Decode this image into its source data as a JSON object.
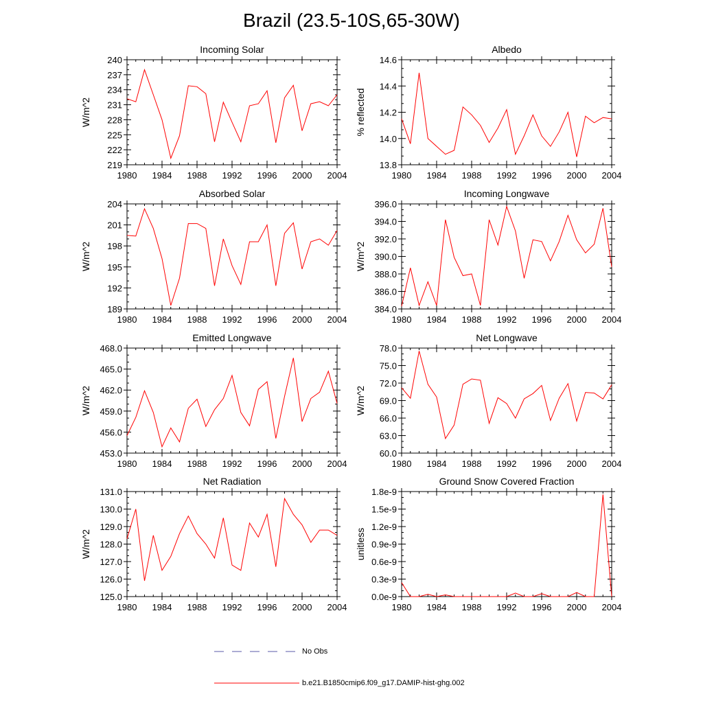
{
  "title": "Brazil (23.5-10S,65-30W)",
  "colors": {
    "model_line": "#ff0000",
    "obs_line": "#5a5aa8",
    "axis": "#000000"
  },
  "legend": {
    "obs_label": "No Obs",
    "model_label": "b.e21.B1850cmip6.f09_g17.DAMIP-hist-ghg.002"
  },
  "chart_data": [
    {
      "type": "line",
      "title": "Incoming Solar",
      "ylabel": "W/m^2",
      "x": [
        1980,
        1981,
        1982,
        1983,
        1984,
        1985,
        1986,
        1987,
        1988,
        1989,
        1990,
        1991,
        1992,
        1993,
        1994,
        1995,
        1996,
        1997,
        1998,
        1999,
        2000,
        2001,
        2002,
        2003,
        2004
      ],
      "values": [
        232.2,
        231.6,
        238.0,
        233.0,
        228.0,
        220.3,
        224.8,
        234.8,
        234.6,
        233.2,
        223.6,
        231.5,
        227.5,
        223.6,
        230.8,
        231.2,
        233.8,
        223.4,
        232.4,
        234.9,
        225.8,
        231.2,
        231.6,
        230.8,
        233.0
      ],
      "xlim": [
        1980,
        2004
      ],
      "ylim": [
        219,
        240
      ],
      "xticks": [
        "1980",
        "1984",
        "1988",
        "1992",
        "1996",
        "2000",
        "2004"
      ],
      "yticks": [
        "219",
        "222",
        "225",
        "228",
        "231",
        "234",
        "237",
        "240"
      ]
    },
    {
      "type": "line",
      "title": "Albedo",
      "ylabel": "% reflected",
      "x": [
        1980,
        1981,
        1982,
        1983,
        1984,
        1985,
        1986,
        1987,
        1988,
        1989,
        1990,
        1991,
        1992,
        1993,
        1994,
        1995,
        1996,
        1997,
        1998,
        1999,
        2000,
        2001,
        2002,
        2003,
        2004
      ],
      "values": [
        14.15,
        13.96,
        14.5,
        14.0,
        13.94,
        13.88,
        13.91,
        14.24,
        14.18,
        14.1,
        13.97,
        14.08,
        14.22,
        13.88,
        14.02,
        14.18,
        14.02,
        13.94,
        14.05,
        14.2,
        13.86,
        14.17,
        14.12,
        14.16,
        14.15
      ],
      "xlim": [
        1980,
        2004
      ],
      "ylim": [
        13.8,
        14.6
      ],
      "xticks": [
        "1980",
        "1984",
        "1988",
        "1992",
        "1996",
        "2000",
        "2004"
      ],
      "yticks": [
        "13.8",
        "14.0",
        "14.2",
        "14.4",
        "14.6"
      ]
    },
    {
      "type": "line",
      "title": "Absorbed Solar",
      "ylabel": "W/m^2",
      "x": [
        1980,
        1981,
        1982,
        1983,
        1984,
        1985,
        1986,
        1987,
        1988,
        1989,
        1990,
        1991,
        1992,
        1993,
        1994,
        1995,
        1996,
        1997,
        1998,
        1999,
        2000,
        2001,
        2002,
        2003,
        2004
      ],
      "values": [
        199.5,
        199.4,
        203.3,
        200.5,
        196.2,
        189.5,
        193.4,
        201.2,
        201.2,
        200.5,
        192.3,
        199.0,
        195.2,
        192.5,
        198.6,
        198.6,
        201.0,
        192.3,
        199.8,
        201.3,
        194.7,
        198.6,
        199.0,
        198.1,
        200.2
      ],
      "xlim": [
        1980,
        2004
      ],
      "ylim": [
        189,
        204
      ],
      "xticks": [
        "1980",
        "1984",
        "1988",
        "1992",
        "1996",
        "2000",
        "2004"
      ],
      "yticks": [
        "189",
        "192",
        "195",
        "198",
        "201",
        "204"
      ]
    },
    {
      "type": "line",
      "title": "Incoming Longwave",
      "ylabel": "W/m^2",
      "x": [
        1980,
        1981,
        1982,
        1983,
        1984,
        1985,
        1986,
        1987,
        1988,
        1989,
        1990,
        1991,
        1992,
        1993,
        1994,
        1995,
        1996,
        1997,
        1998,
        1999,
        2000,
        2001,
        2002,
        2003,
        2004
      ],
      "values": [
        384.3,
        388.7,
        384.4,
        387.1,
        384.4,
        394.2,
        389.9,
        387.8,
        388.0,
        384.4,
        394.2,
        391.3,
        395.7,
        392.9,
        387.5,
        391.9,
        391.7,
        389.5,
        391.7,
        394.7,
        391.9,
        390.4,
        391.4,
        395.5,
        388.8
      ],
      "xlim": [
        1980,
        2004
      ],
      "ylim": [
        384,
        396
      ],
      "xticks": [
        "1980",
        "1984",
        "1988",
        "1992",
        "1996",
        "2000",
        "2004"
      ],
      "yticks": [
        "384.0",
        "386.0",
        "388.0",
        "390.0",
        "392.0",
        "394.0",
        "396.0"
      ]
    },
    {
      "type": "line",
      "title": "Emitted Longwave",
      "ylabel": "W/m^2",
      "x": [
        1980,
        1981,
        1982,
        1983,
        1984,
        1985,
        1986,
        1987,
        1988,
        1989,
        1990,
        1991,
        1992,
        1993,
        1994,
        1995,
        1996,
        1997,
        1998,
        1999,
        2000,
        2001,
        2002,
        2003,
        2004
      ],
      "values": [
        455.5,
        458.1,
        461.9,
        458.8,
        453.9,
        456.6,
        454.6,
        459.4,
        460.7,
        456.8,
        459.2,
        460.8,
        464.1,
        458.8,
        456.9,
        462.1,
        463.2,
        455.1,
        461.1,
        466.6,
        457.5,
        460.8,
        461.7,
        464.7,
        460.1
      ],
      "xlim": [
        1980,
        2004
      ],
      "ylim": [
        453,
        468
      ],
      "xticks": [
        "1980",
        "1984",
        "1988",
        "1992",
        "1996",
        "2000",
        "2004"
      ],
      "yticks": [
        "453.0",
        "456.0",
        "459.0",
        "462.0",
        "465.0",
        "468.0"
      ]
    },
    {
      "type": "line",
      "title": "Net Longwave",
      "ylabel": "W/m^2",
      "x": [
        1980,
        1981,
        1982,
        1983,
        1984,
        1985,
        1986,
        1987,
        1988,
        1989,
        1990,
        1991,
        1992,
        1993,
        1994,
        1995,
        1996,
        1997,
        1998,
        1999,
        2000,
        2001,
        2002,
        2003,
        2004
      ],
      "values": [
        71.2,
        69.4,
        77.5,
        71.8,
        69.6,
        62.5,
        64.8,
        71.8,
        72.7,
        72.5,
        65.1,
        69.5,
        68.5,
        66.0,
        69.3,
        70.2,
        71.6,
        65.6,
        69.4,
        71.9,
        65.5,
        70.4,
        70.3,
        69.3,
        71.7
      ],
      "xlim": [
        1980,
        2004
      ],
      "ylim": [
        60,
        78
      ],
      "xticks": [
        "1980",
        "1984",
        "1988",
        "1992",
        "1996",
        "2000",
        "2004"
      ],
      "yticks": [
        "60.0",
        "63.0",
        "66.0",
        "69.0",
        "72.0",
        "75.0",
        "78.0"
      ]
    },
    {
      "type": "line",
      "title": "Net Radiation",
      "ylabel": "W/m^2",
      "x": [
        1980,
        1981,
        1982,
        1983,
        1984,
        1985,
        1986,
        1987,
        1988,
        1989,
        1990,
        1991,
        1992,
        1993,
        1994,
        1995,
        1996,
        1997,
        1998,
        1999,
        2000,
        2001,
        2002,
        2003,
        2004
      ],
      "values": [
        128.3,
        130.0,
        125.9,
        128.5,
        126.5,
        127.3,
        128.6,
        129.6,
        128.6,
        128.0,
        127.2,
        129.5,
        126.8,
        126.5,
        129.2,
        128.4,
        129.7,
        126.7,
        130.6,
        129.7,
        129.1,
        128.1,
        128.8,
        128.8,
        128.5
      ],
      "xlim": [
        1980,
        2004
      ],
      "ylim": [
        125,
        131
      ],
      "xticks": [
        "1980",
        "1984",
        "1988",
        "1992",
        "1996",
        "2000",
        "2004"
      ],
      "yticks": [
        "125.0",
        "126.0",
        "127.0",
        "128.0",
        "129.0",
        "130.0",
        "131.0"
      ]
    },
    {
      "type": "line",
      "title": "Ground Snow Covered Fraction",
      "ylabel": "unitless",
      "x": [
        1980,
        1981,
        1982,
        1983,
        1984,
        1985,
        1986,
        1987,
        1988,
        1989,
        1990,
        1991,
        1992,
        1993,
        1994,
        1995,
        1996,
        1997,
        1998,
        1999,
        2000,
        2001,
        2002,
        2003,
        2004
      ],
      "values": [
        2.4e-10,
        0.0,
        0.0,
        4e-11,
        0.0,
        3e-11,
        0.0,
        0.0,
        0.0,
        0.0,
        0.0,
        0.0,
        0.0,
        6e-11,
        0.0,
        0.0,
        5e-11,
        0.0,
        0.0,
        0.0,
        7e-11,
        0.0,
        0.0,
        1.75e-09,
        0.0
      ],
      "xlim": [
        1980,
        2004
      ],
      "ylim": [
        0,
        1.8e-09
      ],
      "xticks": [
        "1980",
        "1984",
        "1988",
        "1992",
        "1996",
        "2000",
        "2004"
      ],
      "yticks": [
        "0.0e-9",
        "0.3e-9",
        "0.6e-9",
        "0.9e-9",
        "1.2e-9",
        "1.5e-9",
        "1.8e-9"
      ]
    }
  ]
}
